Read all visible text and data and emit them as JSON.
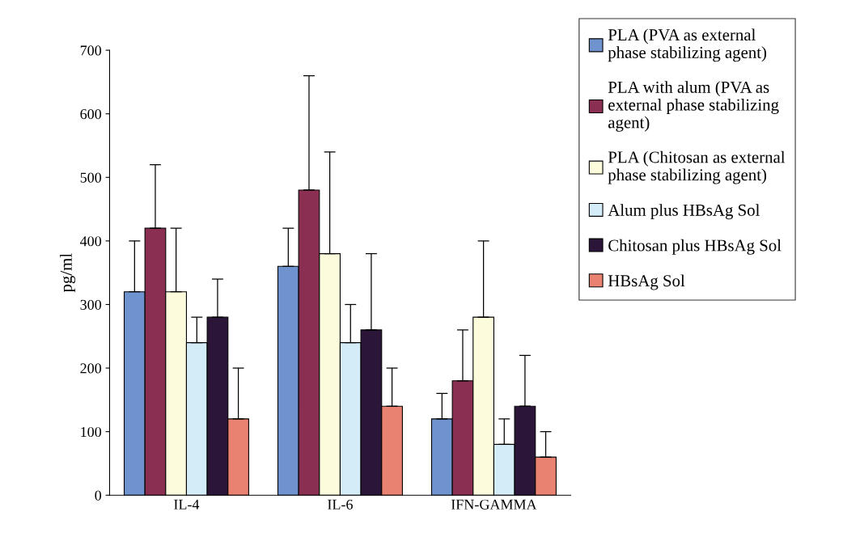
{
  "chart_data": {
    "type": "bar",
    "ylabel": "pg/ml",
    "categories": [
      "IL-4",
      "IL-6",
      "IFN-GAMMA"
    ],
    "series": [
      {
        "name": "PLA (PVA as external\nphase stabilizing agent)",
        "color": "#6f93cf",
        "values": [
          320,
          360,
          120
        ],
        "errors": [
          [
            320,
            400
          ],
          [
            360,
            420
          ],
          [
            120,
            160
          ]
        ]
      },
      {
        "name": "PLA with alum (PVA as\nexternal phase stabilizing\nagent)",
        "color": "#8a2f52",
        "values": [
          420,
          480,
          180
        ],
        "errors": [
          [
            420,
            520
          ],
          [
            480,
            660
          ],
          [
            180,
            260
          ]
        ]
      },
      {
        "name": "PLA (Chitosan as external\nphase stabilizing agent)",
        "color": "#fcfbdc",
        "values": [
          320,
          380,
          280
        ],
        "errors": [
          [
            320,
            420
          ],
          [
            380,
            540
          ],
          [
            280,
            400
          ]
        ]
      },
      {
        "name": "Alum plus HBsAg Sol",
        "color": "#d4ecf8",
        "values": [
          240,
          240,
          80
        ],
        "errors": [
          [
            240,
            280
          ],
          [
            240,
            300
          ],
          [
            80,
            120
          ]
        ]
      },
      {
        "name": "Chitosan plus HBsAg Sol",
        "color": "#2b1538",
        "values": [
          280,
          260,
          140
        ],
        "errors": [
          [
            280,
            340
          ],
          [
            260,
            380
          ],
          [
            140,
            220
          ]
        ]
      },
      {
        "name": "HBsAg Sol",
        "color": "#e98270",
        "values": [
          120,
          140,
          60
        ],
        "errors": [
          [
            120,
            200
          ],
          [
            140,
            200
          ],
          [
            60,
            100
          ]
        ]
      }
    ],
    "ylim": [
      0,
      700
    ],
    "yticks": [
      0,
      100,
      200,
      300,
      400,
      500,
      600,
      700
    ],
    "grid": false,
    "legend": "right"
  }
}
